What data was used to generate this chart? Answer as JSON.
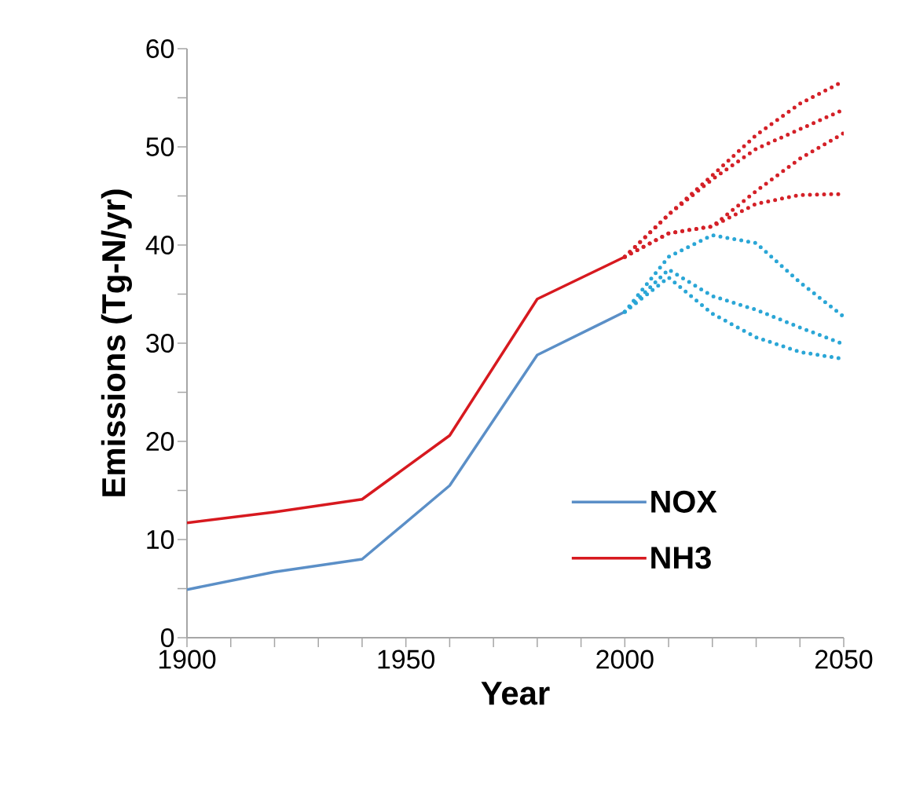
{
  "chart_data": {
    "type": "line",
    "xlabel": "Year",
    "ylabel": "Emissions  (Tg-N/yr)",
    "xlim": [
      1900,
      2050
    ],
    "ylim": [
      0,
      60
    ],
    "xticks": [
      1900,
      {
        "value": 1910,
        "label": null
      },
      {
        "value": 1920,
        "label": null
      },
      {
        "value": 1930,
        "label": null
      },
      {
        "value": 1940,
        "label": null
      },
      1950,
      {
        "value": 1960,
        "label": null
      },
      {
        "value": 1970,
        "label": null
      },
      {
        "value": 1980,
        "label": null
      },
      {
        "value": 1990,
        "label": null
      },
      2000,
      {
        "value": 2010,
        "label": null
      },
      {
        "value": 2020,
        "label": null
      },
      {
        "value": 2030,
        "label": null
      },
      {
        "value": 2040,
        "label": null
      },
      2050
    ],
    "yticks": [
      0,
      {
        "value": 5,
        "label": null
      },
      10,
      {
        "value": 15,
        "label": null
      },
      20,
      {
        "value": 25,
        "label": null
      },
      30,
      {
        "value": 35,
        "label": null
      },
      40,
      {
        "value": 45,
        "label": null
      },
      50,
      {
        "value": 55,
        "label": null
      },
      60
    ],
    "legend": "bottom right",
    "grid": false,
    "marker": "none",
    "series": [
      {
        "name": "NOX",
        "color": "#5b8fc7",
        "line_style": "solid",
        "x": [
          1900,
          1920,
          1940,
          1960,
          1980,
          2000
        ],
        "values": [
          4.9,
          6.7,
          8.0,
          15.5,
          28.8,
          33.2
        ]
      },
      {
        "name": "NH3",
        "color": "#d7191f",
        "line_style": "solid",
        "x": [
          1900,
          1920,
          1940,
          1960,
          1980,
          2000
        ],
        "values": [
          11.7,
          12.8,
          14.1,
          20.6,
          34.5,
          38.8
        ]
      },
      {
        "color": "#d42027",
        "line_style": "dotted",
        "x": [
          2000,
          2010,
          2020,
          2030,
          2040,
          2050
        ],
        "values": [
          38.8,
          43.1,
          47.1,
          51.2,
          54.4,
          56.7
        ]
      },
      {
        "color": "#d42027",
        "line_style": "dotted",
        "x": [
          2000,
          2010,
          2020,
          2030,
          2040,
          2050
        ],
        "values": [
          38.8,
          43.1,
          46.7,
          49.8,
          51.8,
          53.8
        ]
      },
      {
        "color": "#d42027",
        "line_style": "dotted",
        "x": [
          2000,
          2010,
          2020,
          2030,
          2040,
          2050
        ],
        "values": [
          38.8,
          41.2,
          41.9,
          45.5,
          48.8,
          51.4
        ]
      },
      {
        "color": "#d42027",
        "line_style": "dotted",
        "x": [
          2000,
          2010,
          2020,
          2030,
          2040,
          2050
        ],
        "values": [
          38.8,
          41.2,
          41.9,
          44.2,
          45.1,
          45.2
        ]
      },
      {
        "color": "#2aa6d6",
        "line_style": "dotted",
        "x": [
          2000,
          2010,
          2020,
          2030,
          2040,
          2050
        ],
        "values": [
          33.2,
          38.8,
          41.0,
          40.2,
          36.2,
          32.7
        ]
      },
      {
        "color": "#2aa6d6",
        "line_style": "dotted",
        "x": [
          2000,
          2010,
          2020,
          2030,
          2040,
          2050
        ],
        "values": [
          33.2,
          37.5,
          34.8,
          33.4,
          31.6,
          29.9
        ]
      },
      {
        "color": "#2aa6d6",
        "line_style": "dotted",
        "x": [
          2000,
          2010,
          2020,
          2030,
          2040,
          2050
        ],
        "values": [
          33.2,
          36.7,
          33.0,
          30.6,
          29.1,
          28.4
        ]
      }
    ]
  }
}
